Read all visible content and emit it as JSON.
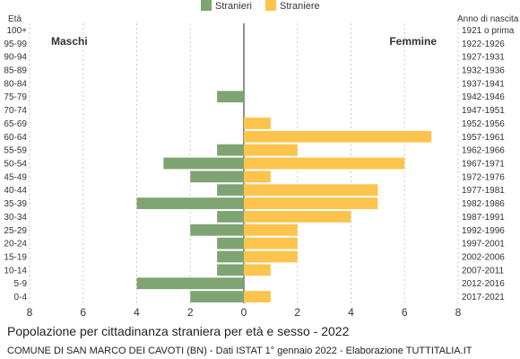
{
  "chart_data": {
    "type": "bar",
    "orientation": "horizontal",
    "layout": "population-pyramid",
    "title": "Popolazione per cittadinanza straniera per età e sesso - 2022",
    "subtitle": "COMUNE DI SAN MARCO DEI CAVOTI (BN) - Dati ISTAT 1° gennaio 2022 - Elaborazione TUTTITALIA.IT",
    "left_axis_title": "Età",
    "right_axis_title": "Anno di nascita",
    "left_side_label": "Maschi",
    "right_side_label": "Femmine",
    "xlim": [
      -8,
      8
    ],
    "xticks": [
      8,
      6,
      4,
      2,
      0,
      2,
      4,
      6,
      8
    ],
    "xtick_values": [
      -8,
      -6,
      -4,
      -2,
      0,
      2,
      4,
      6,
      8
    ],
    "grid": true,
    "legend_position": "top-center",
    "categories": [
      "100+",
      "95-99",
      "90-94",
      "85-89",
      "80-84",
      "75-79",
      "70-74",
      "65-69",
      "60-64",
      "55-59",
      "50-54",
      "45-49",
      "40-44",
      "35-39",
      "30-34",
      "25-29",
      "20-24",
      "15-19",
      "10-14",
      "5-9",
      "0-4"
    ],
    "birth_years": [
      "1921 o prima",
      "1922-1926",
      "1927-1931",
      "1932-1936",
      "1937-1941",
      "1942-1946",
      "1947-1951",
      "1952-1956",
      "1957-1961",
      "1962-1966",
      "1967-1971",
      "1972-1976",
      "1977-1981",
      "1982-1986",
      "1987-1991",
      "1992-1996",
      "1997-2001",
      "2002-2006",
      "2007-2011",
      "2012-2016",
      "2017-2021"
    ],
    "series": [
      {
        "name": "Stranieri",
        "side": "left",
        "color": "#7fa474",
        "values": [
          0,
          0,
          0,
          0,
          0,
          1,
          0,
          0,
          0,
          1,
          3,
          2,
          1,
          4,
          1,
          2,
          1,
          1,
          1,
          4,
          2
        ]
      },
      {
        "name": "Straniere",
        "side": "right",
        "color": "#fcc44c",
        "values": [
          0,
          0,
          0,
          0,
          0,
          0,
          0,
          1,
          7,
          2,
          6,
          1,
          5,
          5,
          4,
          2,
          2,
          2,
          1,
          0,
          1
        ]
      }
    ]
  }
}
